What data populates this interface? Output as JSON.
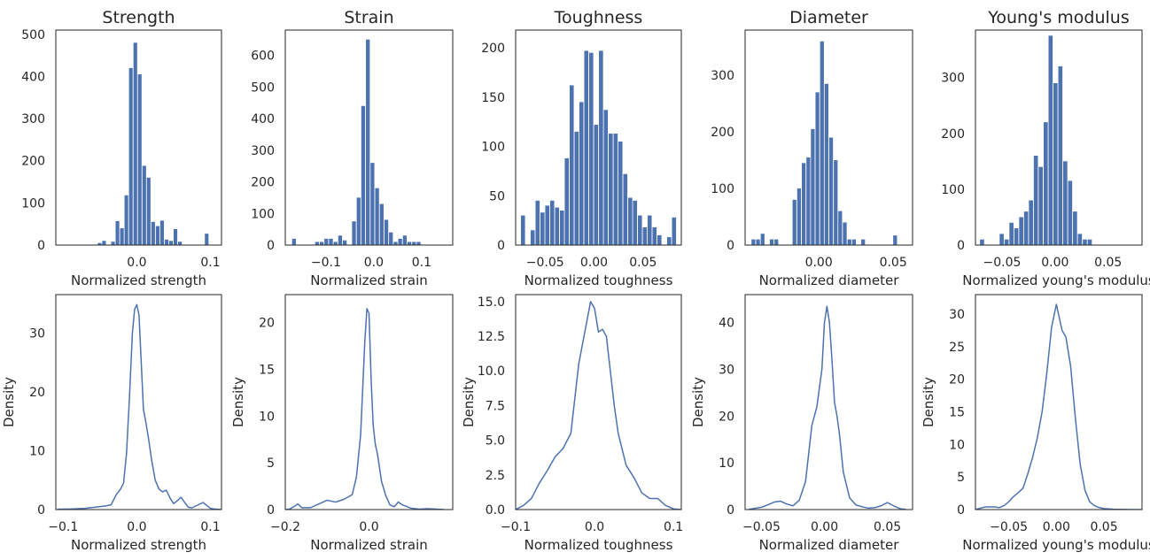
{
  "chart_data": [
    {
      "type": "bar",
      "title": "Strength",
      "xlabel": "Normalized strength",
      "ylabel": "",
      "xlim": [
        -0.11,
        0.115
      ],
      "ylim": [
        0,
        510
      ],
      "xticks": [
        0.0,
        0.1
      ],
      "xtick_labels": [
        "0.0",
        "0.1"
      ],
      "yticks": [
        0,
        100,
        200,
        300,
        400,
        500
      ],
      "ytick_labels": [
        "0",
        "100",
        "200",
        "300",
        "400",
        "500"
      ],
      "bin_width": 0.00606,
      "bin_starts": [
        -0.0955,
        -0.0894,
        -0.0833,
        -0.0773,
        -0.0712,
        -0.0652,
        -0.0591,
        -0.053,
        -0.047,
        -0.0409,
        -0.0348,
        -0.0288,
        -0.0227,
        -0.0167,
        -0.0106,
        -0.0045,
        0.0015,
        0.0076,
        0.0136,
        0.0197,
        0.0258,
        0.0318,
        0.0379,
        0.0439,
        0.05,
        0.0561,
        0.0621,
        0.0682,
        0.0742,
        0.0803,
        0.0864,
        0.0924
      ],
      "values": [
        0,
        0,
        0,
        0,
        0,
        0,
        0,
        5,
        10,
        0,
        8,
        57,
        40,
        118,
        420,
        480,
        405,
        188,
        160,
        55,
        45,
        58,
        13,
        10,
        38,
        8,
        0,
        0,
        0,
        0,
        0,
        27
      ],
      "grid": false
    },
    {
      "type": "bar",
      "title": "Strain",
      "xlabel": "Normalized strain",
      "ylabel": "",
      "xlim": [
        -0.185,
        0.165
      ],
      "ylim": [
        0,
        680
      ],
      "xticks": [
        -0.1,
        0.0,
        0.1
      ],
      "xtick_labels": [
        "−0.1",
        "0.0",
        "0.1"
      ],
      "yticks": [
        0,
        100,
        200,
        300,
        400,
        500,
        600
      ],
      "ytick_labels": [
        "0",
        "100",
        "200",
        "300",
        "400",
        "500",
        "600"
      ],
      "bin_width": 0.00965,
      "bin_starts": [
        -0.1708,
        -0.1612,
        -0.1515,
        -0.1419,
        -0.1322,
        -0.1226,
        -0.1129,
        -0.1033,
        -0.0936,
        -0.084,
        -0.0743,
        -0.0647,
        -0.055,
        -0.0454,
        -0.0357,
        -0.0261,
        -0.0164,
        -0.0068,
        0.0029,
        0.0125,
        0.0222,
        0.0318,
        0.0415,
        0.0511,
        0.0608,
        0.0704,
        0.0801,
        0.0897,
        0.0994,
        0.109,
        0.1187,
        0.1283
      ],
      "values": [
        20,
        0,
        0,
        0,
        0,
        10,
        10,
        20,
        20,
        10,
        30,
        15,
        0,
        75,
        150,
        440,
        650,
        260,
        180,
        130,
        80,
        40,
        10,
        20,
        30,
        10,
        10,
        10,
        0,
        0,
        0,
        0
      ],
      "grid": false
    },
    {
      "type": "bar",
      "title": "Toughness",
      "xlabel": "Normalized toughness",
      "ylabel": "",
      "xlim": [
        -0.08,
        0.089
      ],
      "ylim": [
        0,
        218
      ],
      "xticks": [
        -0.05,
        0.0,
        0.05
      ],
      "xtick_labels": [
        "−0.05",
        "0.00",
        "0.05"
      ],
      "yticks": [
        0,
        50,
        100,
        150,
        200
      ],
      "ytick_labels": [
        "0",
        "50",
        "100",
        "150",
        "200"
      ],
      "bin_width": 0.00497,
      "bin_starts": [
        -0.0746,
        -0.0696,
        -0.0647,
        -0.0597,
        -0.0547,
        -0.0498,
        -0.0448,
        -0.0398,
        -0.0348,
        -0.0299,
        -0.0249,
        -0.0199,
        -0.015,
        -0.01,
        -0.005,
        0.0,
        0.005,
        0.0099,
        0.0149,
        0.0199,
        0.0248,
        0.0298,
        0.0348,
        0.0397,
        0.0447,
        0.0497,
        0.0546,
        0.0596,
        0.0646,
        0.0695,
        0.0745,
        0.0795
      ],
      "values": [
        30,
        0,
        15,
        45,
        33,
        40,
        45,
        38,
        35,
        88,
        162,
        115,
        145,
        197,
        195,
        122,
        197,
        137,
        113,
        113,
        105,
        72,
        48,
        45,
        30,
        18,
        30,
        18,
        10,
        0,
        8,
        28
      ],
      "grid": false
    },
    {
      "type": "bar",
      "title": "Diameter",
      "xlabel": "Normalized diameter",
      "ylabel": "",
      "xlim": [
        -0.0495,
        0.063
      ],
      "ylim": [
        0,
        380
      ],
      "xticks": [
        0.0,
        0.05
      ],
      "xtick_labels": [
        "0.00",
        "0.05"
      ],
      "yticks": [
        0,
        100,
        200,
        300
      ],
      "ytick_labels": [
        "0",
        "100",
        "200",
        "300"
      ],
      "bin_width": 0.00307,
      "bin_starts": [
        -0.0452,
        -0.0421,
        -0.039,
        -0.036,
        -0.0329,
        -0.0298,
        -0.0268,
        -0.0237,
        -0.0206,
        -0.0176,
        -0.0145,
        -0.0114,
        -0.0083,
        -0.0053,
        -0.0022,
        0.0009,
        0.0039,
        0.007,
        0.0101,
        0.0131,
        0.0162,
        0.0193,
        0.0224,
        0.0254,
        0.0285,
        0.0316,
        0.0346,
        0.0377,
        0.0408,
        0.0438,
        0.0469,
        0.05
      ],
      "values": [
        10,
        10,
        20,
        0,
        10,
        10,
        0,
        0,
        0,
        80,
        100,
        145,
        155,
        205,
        270,
        360,
        285,
        190,
        150,
        60,
        40,
        10,
        10,
        0,
        10,
        0,
        0,
        0,
        0,
        0,
        0,
        17
      ],
      "grid": false
    },
    {
      "type": "bar",
      "title": "Young's modulus",
      "xlabel": "Normalized young's modulus",
      "ylabel": "",
      "xlim": [
        -0.075,
        0.082
      ],
      "ylim": [
        0,
        385
      ],
      "xticks": [
        -0.05,
        0.0,
        0.05
      ],
      "xtick_labels": [
        "−0.05",
        "0.00",
        "0.05"
      ],
      "yticks": [
        0,
        100,
        200,
        300
      ],
      "ytick_labels": [
        "0",
        "100",
        "200",
        "300"
      ],
      "bin_width": 0.00461,
      "bin_starts": [
        -0.0707,
        -0.0661,
        -0.0615,
        -0.0569,
        -0.0522,
        -0.0476,
        -0.043,
        -0.0384,
        -0.0338,
        -0.0292,
        -0.0246,
        -0.02,
        -0.0154,
        -0.0107,
        -0.0061,
        -0.0015,
        0.0031,
        0.0077,
        0.0123,
        0.0169,
        0.0215,
        0.0262,
        0.0308,
        0.0354,
        0.04,
        0.0446,
        0.0492,
        0.0538,
        0.0584,
        0.063,
        0.0677,
        0.0723
      ],
      "values": [
        10,
        0,
        0,
        0,
        20,
        10,
        40,
        30,
        50,
        60,
        80,
        160,
        140,
        220,
        375,
        290,
        320,
        150,
        115,
        60,
        20,
        10,
        10,
        0,
        0,
        0,
        0,
        0,
        0,
        0,
        0,
        0
      ],
      "grid": false
    },
    {
      "type": "line",
      "title": "",
      "xlabel": "Normalized strength",
      "ylabel": "Density",
      "xlim": [
        -0.11,
        0.115
      ],
      "ylim": [
        0,
        36.5
      ],
      "xticks": [
        -0.1,
        0.0,
        0.1
      ],
      "xtick_labels": [
        "−0.1",
        "0.0",
        "0.1"
      ],
      "yticks": [
        0,
        10,
        20,
        30
      ],
      "ytick_labels": [
        "0",
        "10",
        "20",
        "30"
      ],
      "x": [
        -0.108,
        -0.09,
        -0.07,
        -0.05,
        -0.043,
        -0.035,
        -0.028,
        -0.022,
        -0.018,
        -0.014,
        -0.01,
        -0.006,
        -0.003,
        0.0,
        0.003,
        0.006,
        0.009,
        0.012,
        0.016,
        0.02,
        0.025,
        0.03,
        0.035,
        0.04,
        0.045,
        0.05,
        0.055,
        0.06,
        0.065,
        0.07,
        0.075,
        0.08,
        0.085,
        0.09,
        0.095,
        0.1,
        0.105,
        0.11,
        0.115
      ],
      "y": [
        0.05,
        0.1,
        0.2,
        0.5,
        0.6,
        0.8,
        2.5,
        3.5,
        4.5,
        9.5,
        19.0,
        30.0,
        34.0,
        34.8,
        33.0,
        25.0,
        17.0,
        15.0,
        12.0,
        8.5,
        5.0,
        3.5,
        3.0,
        3.3,
        2.0,
        1.0,
        1.5,
        2.1,
        1.2,
        0.4,
        0.3,
        0.6,
        0.9,
        1.2,
        0.7,
        0.2,
        0.1,
        0.05,
        0.0
      ],
      "series": [
        {
          "values_key": "y"
        }
      ],
      "grid": false
    },
    {
      "type": "line",
      "title": "",
      "xlabel": "Normalized strain",
      "ylabel": "Density",
      "xlim": [
        -0.2,
        0.2
      ],
      "ylim": [
        0,
        23
      ],
      "xticks": [
        -0.2,
        0.0
      ],
      "xtick_labels": [
        "−0.2",
        "0.0"
      ],
      "yticks": [
        0,
        5,
        10,
        15,
        20
      ],
      "ytick_labels": [
        "0",
        "5",
        "10",
        "15",
        "20"
      ],
      "x": [
        -0.2,
        -0.19,
        -0.18,
        -0.17,
        -0.16,
        -0.14,
        -0.12,
        -0.1,
        -0.08,
        -0.06,
        -0.04,
        -0.03,
        -0.02,
        -0.01,
        -0.005,
        0.0,
        0.005,
        0.01,
        0.015,
        0.02,
        0.03,
        0.04,
        0.05,
        0.06,
        0.07,
        0.08,
        0.1,
        0.12,
        0.14,
        0.16,
        0.18
      ],
      "y": [
        0.0,
        0.05,
        0.3,
        0.6,
        0.2,
        0.2,
        0.6,
        1.0,
        0.8,
        1.1,
        1.6,
        3.5,
        8.0,
        18.0,
        21.5,
        21.0,
        14.0,
        9.0,
        7.0,
        6.0,
        3.0,
        1.5,
        0.5,
        0.3,
        0.8,
        0.5,
        0.15,
        0.05,
        0.1,
        0.05,
        0.0
      ],
      "grid": false
    },
    {
      "type": "line",
      "title": "",
      "xlabel": "Normalized toughness",
      "ylabel": "Density",
      "xlim": [
        -0.1,
        0.11
      ],
      "ylim": [
        0,
        15.5
      ],
      "xticks": [
        -0.1,
        0.0,
        0.1
      ],
      "xtick_labels": [
        "−0.1",
        "0.0",
        "0.1"
      ],
      "yticks": [
        0,
        2.5,
        5.0,
        7.5,
        10.0,
        12.5,
        15.0
      ],
      "ytick_labels": [
        "0.0",
        "2.5",
        "5.0",
        "7.5",
        "10.0",
        "12.5",
        "15.0"
      ],
      "x": [
        -0.1,
        -0.09,
        -0.08,
        -0.07,
        -0.06,
        -0.05,
        -0.04,
        -0.03,
        -0.02,
        -0.01,
        -0.005,
        0.0,
        0.005,
        0.01,
        0.015,
        0.02,
        0.025,
        0.03,
        0.04,
        0.05,
        0.06,
        0.07,
        0.08,
        0.09,
        0.1,
        0.11
      ],
      "y": [
        0.0,
        0.3,
        0.8,
        1.9,
        2.8,
        3.8,
        4.4,
        5.5,
        10.5,
        13.5,
        15.0,
        14.5,
        12.8,
        13.0,
        12.5,
        10.0,
        7.5,
        5.5,
        3.2,
        2.3,
        1.2,
        0.8,
        0.8,
        0.3,
        0.05,
        0.0
      ],
      "grid": false
    },
    {
      "type": "line",
      "title": "",
      "xlabel": "Normalized diameter",
      "ylabel": "Density",
      "xlim": [
        -0.063,
        0.07
      ],
      "ylim": [
        0,
        46
      ],
      "xticks": [
        -0.05,
        0.0,
        0.05
      ],
      "xtick_labels": [
        "−0.05",
        "0.00",
        "0.05"
      ],
      "yticks": [
        0,
        10,
        20,
        30,
        40
      ],
      "ytick_labels": [
        "0",
        "10",
        "20",
        "30",
        "40"
      ],
      "x": [
        -0.06,
        -0.05,
        -0.045,
        -0.04,
        -0.035,
        -0.03,
        -0.025,
        -0.02,
        -0.015,
        -0.01,
        -0.006,
        -0.002,
        0.0,
        0.002,
        0.004,
        0.006,
        0.008,
        0.01,
        0.012,
        0.015,
        0.02,
        0.025,
        0.03,
        0.035,
        0.04,
        0.045,
        0.05,
        0.055,
        0.06,
        0.065
      ],
      "y": [
        0.05,
        0.5,
        1.0,
        1.6,
        1.8,
        1.2,
        0.8,
        2.0,
        6.0,
        18.0,
        22.0,
        30.0,
        40.0,
        43.5,
        40.0,
        32.0,
        23.0,
        20.0,
        16.0,
        8.0,
        2.5,
        1.0,
        0.6,
        0.3,
        0.4,
        0.8,
        1.5,
        0.8,
        0.2,
        0.0
      ],
      "grid": false
    },
    {
      "type": "line",
      "title": "",
      "xlabel": "Normalized young's modulus",
      "ylabel": "Density",
      "xlim": [
        -0.085,
        0.09
      ],
      "ylim": [
        0,
        33
      ],
      "xticks": [
        -0.05,
        0.0,
        0.05
      ],
      "xtick_labels": [
        "−0.05",
        "0.00",
        "0.05"
      ],
      "yticks": [
        0,
        5,
        10,
        15,
        20,
        25,
        30
      ],
      "ytick_labels": [
        "0",
        "5",
        "10",
        "15",
        "20",
        "25",
        "30"
      ],
      "x": [
        -0.085,
        -0.075,
        -0.065,
        -0.06,
        -0.055,
        -0.05,
        -0.045,
        -0.04,
        -0.035,
        -0.03,
        -0.025,
        -0.02,
        -0.015,
        -0.01,
        -0.005,
        0.0,
        0.003,
        0.006,
        0.01,
        0.015,
        0.02,
        0.025,
        0.03,
        0.035,
        0.04,
        0.045,
        0.05,
        0.06,
        0.07,
        0.08,
        0.09
      ],
      "y": [
        0.0,
        0.4,
        0.4,
        0.3,
        0.6,
        1.2,
        2.0,
        2.6,
        3.3,
        5.5,
        8.0,
        11.0,
        15.0,
        21.0,
        28.0,
        31.5,
        29.5,
        27.5,
        26.5,
        22.0,
        14.0,
        7.0,
        3.0,
        1.2,
        0.6,
        0.3,
        0.15,
        0.05,
        0.02,
        0.0,
        0.0
      ],
      "grid": false
    }
  ]
}
